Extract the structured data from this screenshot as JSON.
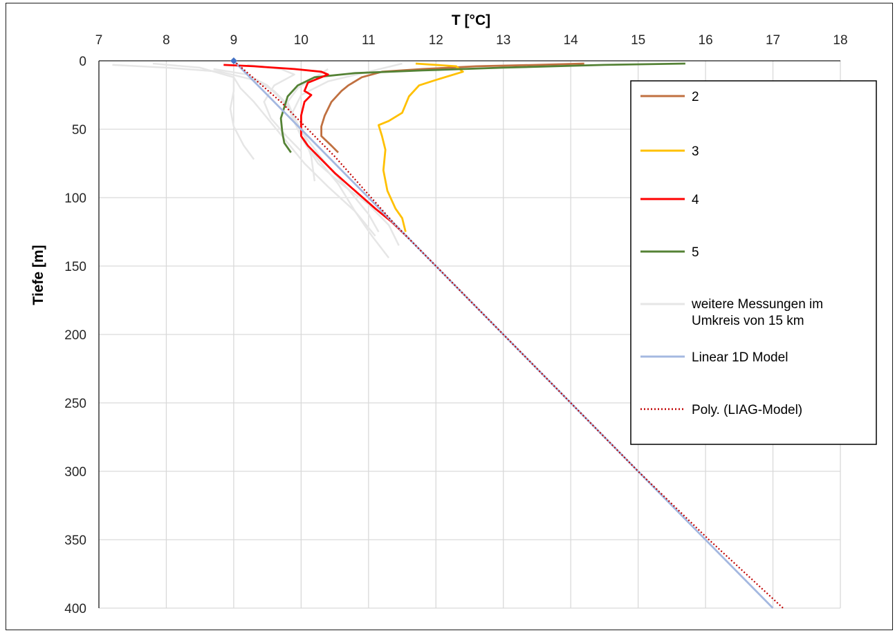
{
  "chart_data": {
    "type": "line",
    "title": "",
    "xlabel": "T [°C]",
    "ylabel": "Tiefe [m]",
    "xlim": [
      7,
      18
    ],
    "ylim": [
      0,
      400
    ],
    "x_ticks": [
      7,
      8,
      9,
      10,
      11,
      12,
      13,
      14,
      15,
      16,
      17,
      18
    ],
    "y_ticks": [
      0,
      50,
      100,
      150,
      200,
      250,
      300,
      350,
      400
    ],
    "x_axis_position": "top",
    "y_axis_inverted": true,
    "grid": true,
    "legend_position": "right",
    "series": [
      {
        "name": "2",
        "color": "#c07040",
        "style": "solid",
        "points": [
          [
            14.2,
            2
          ],
          [
            13.5,
            3
          ],
          [
            12.6,
            4
          ],
          [
            11.8,
            6
          ],
          [
            11.2,
            8
          ],
          [
            10.9,
            12
          ],
          [
            10.7,
            18
          ],
          [
            10.6,
            22
          ],
          [
            10.45,
            30
          ],
          [
            10.35,
            40
          ],
          [
            10.3,
            48
          ],
          [
            10.3,
            55
          ],
          [
            10.45,
            62
          ],
          [
            10.55,
            67
          ]
        ]
      },
      {
        "name": "3",
        "color": "#ffc000",
        "style": "solid",
        "points": [
          [
            11.7,
            2
          ],
          [
            12.3,
            4
          ],
          [
            12.4,
            8
          ],
          [
            12.0,
            14
          ],
          [
            11.75,
            18
          ],
          [
            11.6,
            26
          ],
          [
            11.5,
            38
          ],
          [
            11.3,
            44
          ],
          [
            11.15,
            47
          ],
          [
            11.2,
            55
          ],
          [
            11.25,
            65
          ],
          [
            11.22,
            80
          ],
          [
            11.28,
            95
          ],
          [
            11.4,
            108
          ],
          [
            11.5,
            115
          ],
          [
            11.55,
            125
          ]
        ]
      },
      {
        "name": "4",
        "color": "#ff0000",
        "style": "solid",
        "points": [
          [
            8.85,
            3
          ],
          [
            9.3,
            4
          ],
          [
            9.9,
            6
          ],
          [
            10.3,
            8
          ],
          [
            10.4,
            10
          ],
          [
            10.1,
            16
          ],
          [
            10.05,
            22
          ],
          [
            10.15,
            25
          ],
          [
            10.05,
            30
          ],
          [
            10.0,
            40
          ],
          [
            10.0,
            55
          ],
          [
            10.1,
            62
          ],
          [
            10.3,
            72
          ],
          [
            10.5,
            82
          ],
          [
            10.8,
            95
          ],
          [
            11.1,
            108
          ],
          [
            11.35,
            118
          ],
          [
            11.6,
            130
          ]
        ]
      },
      {
        "name": "5",
        "color": "#548235",
        "style": "solid",
        "points": [
          [
            15.7,
            2
          ],
          [
            14.5,
            3
          ],
          [
            13.0,
            5
          ],
          [
            11.8,
            7
          ],
          [
            10.8,
            9
          ],
          [
            10.2,
            12
          ],
          [
            9.95,
            18
          ],
          [
            9.8,
            26
          ],
          [
            9.75,
            34
          ],
          [
            9.7,
            42
          ],
          [
            9.72,
            52
          ],
          [
            9.75,
            60
          ],
          [
            9.85,
            67
          ]
        ]
      },
      {
        "name": "weitere Messungen im Umkreis von 15 km",
        "color": "#e6e6e6",
        "style": "solid",
        "curves": [
          [
            [
              7.2,
              3
            ],
            [
              8.0,
              5
            ],
            [
              8.8,
              8
            ],
            [
              9.3,
              14
            ],
            [
              9.6,
              22
            ],
            [
              9.8,
              32
            ],
            [
              9.9,
              45
            ],
            [
              10.05,
              60
            ],
            [
              10.25,
              75
            ],
            [
              10.6,
              90
            ],
            [
              11.0,
              105
            ],
            [
              11.3,
              120
            ],
            [
              11.45,
              135
            ]
          ],
          [
            [
              7.8,
              2
            ],
            [
              8.5,
              5
            ],
            [
              9.0,
              12
            ],
            [
              9.0,
              22
            ],
            [
              8.95,
              35
            ],
            [
              9.0,
              48
            ],
            [
              9.15,
              62
            ],
            [
              9.3,
              72
            ]
          ],
          [
            [
              11.5,
              2
            ],
            [
              11.0,
              8
            ],
            [
              10.4,
              15
            ],
            [
              10.0,
              25
            ],
            [
              9.85,
              40
            ],
            [
              10.05,
              55
            ],
            [
              10.15,
              70
            ],
            [
              10.2,
              88
            ]
          ],
          [
            [
              8.7,
              6
            ],
            [
              9.2,
              10
            ],
            [
              9.5,
              18
            ],
            [
              9.7,
              28
            ],
            [
              9.9,
              40
            ],
            [
              10.0,
              55
            ],
            [
              10.25,
              72
            ],
            [
              10.55,
              90
            ],
            [
              10.8,
              110
            ],
            [
              11.05,
              128
            ],
            [
              11.3,
              144
            ]
          ],
          [
            [
              10.4,
              6
            ],
            [
              10.2,
              12
            ],
            [
              9.95,
              20
            ],
            [
              9.8,
              30
            ],
            [
              9.9,
              42
            ],
            [
              10.1,
              58
            ],
            [
              10.35,
              74
            ],
            [
              10.7,
              94
            ],
            [
              11.0,
              112
            ],
            [
              11.15,
              125
            ]
          ],
          [
            [
              9.2,
              3
            ],
            [
              9.7,
              6
            ],
            [
              9.9,
              10
            ],
            [
              9.6,
              18
            ],
            [
              9.45,
              30
            ],
            [
              9.55,
              42
            ],
            [
              9.8,
              56
            ],
            [
              10.0,
              66
            ]
          ],
          [
            [
              9.0,
              12
            ],
            [
              9.1,
              20
            ],
            [
              9.3,
              30
            ],
            [
              9.55,
              45
            ],
            [
              9.8,
              60
            ],
            [
              10.05,
              75
            ],
            [
              10.4,
              92
            ],
            [
              10.8,
              110
            ],
            [
              11.1,
              128
            ]
          ]
        ]
      },
      {
        "name": "Linear 1D Model",
        "color": "#a4b8e0",
        "style": "solid",
        "points": [
          [
            9.0,
            0
          ],
          [
            17.0,
            400
          ]
        ]
      },
      {
        "name": "Poly. (LIAG-Model)",
        "color": "#c00000",
        "style": "dotted",
        "points": [
          [
            9.0,
            0
          ],
          [
            9.7,
            30
          ],
          [
            10.5,
            70
          ],
          [
            11.4,
            120
          ],
          [
            12.0,
            150
          ],
          [
            13.0,
            200
          ],
          [
            14.0,
            250
          ],
          [
            15.0,
            300
          ],
          [
            16.05,
            350
          ],
          [
            17.15,
            400
          ]
        ]
      }
    ],
    "marker": {
      "x": 9.0,
      "y": 0,
      "color": "#4472c4",
      "shape": "diamond"
    }
  }
}
